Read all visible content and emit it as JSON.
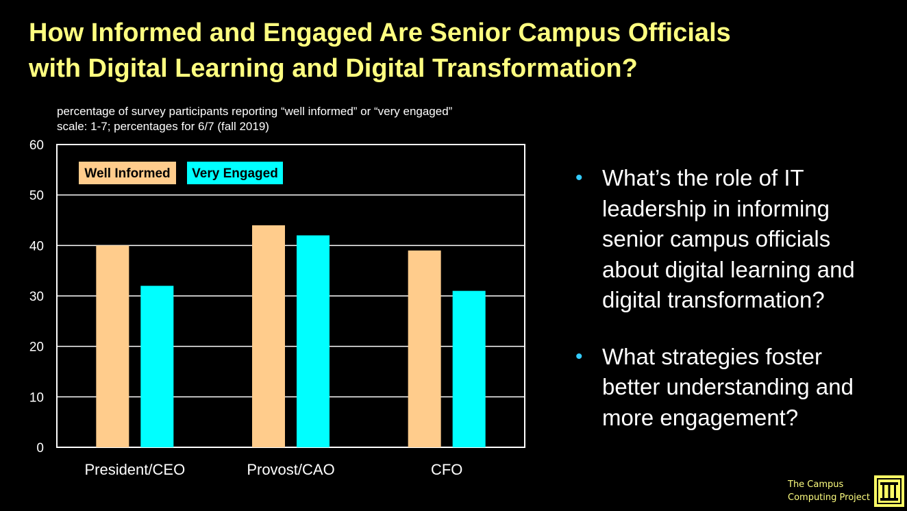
{
  "title_line1": "How Informed and Engaged Are Senior Campus Officials",
  "title_line2": "with Digital Learning and Digital Transformation?",
  "bullets": [
    "What’s the role of IT leadership in informing senior campus officials about digital learning and digital transformation?",
    "What strategies foster better understanding and more engagement?"
  ],
  "logo": {
    "line1": "The Campus",
    "line2": "Computing Project",
    "icon": "column-building-icon"
  },
  "colors": {
    "title": "#FFFF80",
    "bullet": "#33CCFF",
    "well_informed": "#FFCC8C",
    "very_engaged": "#00FFFF"
  },
  "chart_data": {
    "type": "bar",
    "subtitle_line1": "percentage of survey participants reporting “well informed” or “very engaged”",
    "subtitle_line2": "scale: 1-7; percentages for 6/7  (fall 2019)",
    "categories": [
      "President/CEO",
      "Provost/CAO",
      "CFO"
    ],
    "series": [
      {
        "name": "Well Informed",
        "values": [
          40,
          44,
          39
        ]
      },
      {
        "name": "Very Engaged",
        "values": [
          32,
          42,
          31
        ]
      }
    ],
    "ylim": [
      0,
      60
    ],
    "yticks": [
      "0",
      "10",
      "20",
      "30",
      "40",
      "50",
      "60"
    ],
    "grid": true,
    "legend_position": "top-left"
  }
}
